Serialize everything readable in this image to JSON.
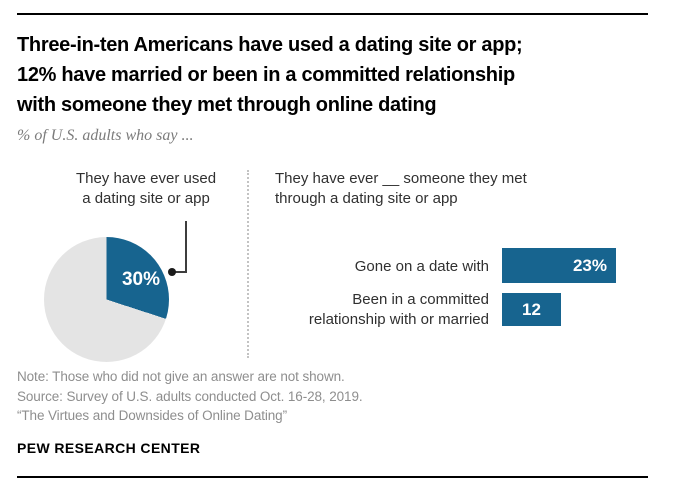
{
  "header": {
    "title_lines": [
      "Three-in-ten Americans have used a dating site or app;",
      "12% have married or been in a committed relationship",
      "with someone they met through online dating"
    ],
    "subtitle": "% of U.S. adults who say ..."
  },
  "pie_section": {
    "label_lines": [
      "They have ever used",
      "a dating site or app"
    ],
    "value_label": "30%"
  },
  "bar_section": {
    "heading_lines": [
      "They have ever __ someone they met",
      "through a dating site or app"
    ],
    "rows": [
      {
        "label_lines": [
          "Gone on a date with"
        ],
        "value_label": "23%"
      },
      {
        "label_lines": [
          "Been in a committed",
          "relationship with or married"
        ],
        "value_label": "12"
      }
    ]
  },
  "footer": {
    "note": "Note: Those who did not give an answer are not shown.",
    "source": "Source: Survey of U.S. adults conducted Oct. 16-28, 2019.",
    "report": "“The Virtues and Downsides of Online Dating”",
    "brand": "PEW RESEARCH CENTER"
  },
  "colors": {
    "accent_blue": "#17648f",
    "pie_remainder": "#e4e4e4",
    "note_gray": "#8e8e8e",
    "text_dark": "#303030"
  },
  "chart_data": [
    {
      "type": "pie",
      "title": "They have ever used a dating site or app",
      "slices": [
        {
          "label": "They have ever used a dating site or app",
          "value": 30
        },
        {
          "label": "Not shown (did not use / no answer)",
          "value": 70
        }
      ],
      "colors": [
        "#17648f",
        "#e4e4e4"
      ],
      "data_labels": [
        "30%"
      ],
      "start_angle_deg": 0,
      "direction": "clockwise"
    },
    {
      "type": "bar",
      "orientation": "horizontal",
      "title": "They have ever __ someone they met through a dating site or app",
      "categories": [
        "Gone on a date with",
        "Been in a committed relationship with or married"
      ],
      "values": [
        23,
        12
      ],
      "data_labels": [
        "23%",
        "12"
      ],
      "xlim": [
        0,
        30
      ],
      "grid": false,
      "legend": false
    }
  ]
}
